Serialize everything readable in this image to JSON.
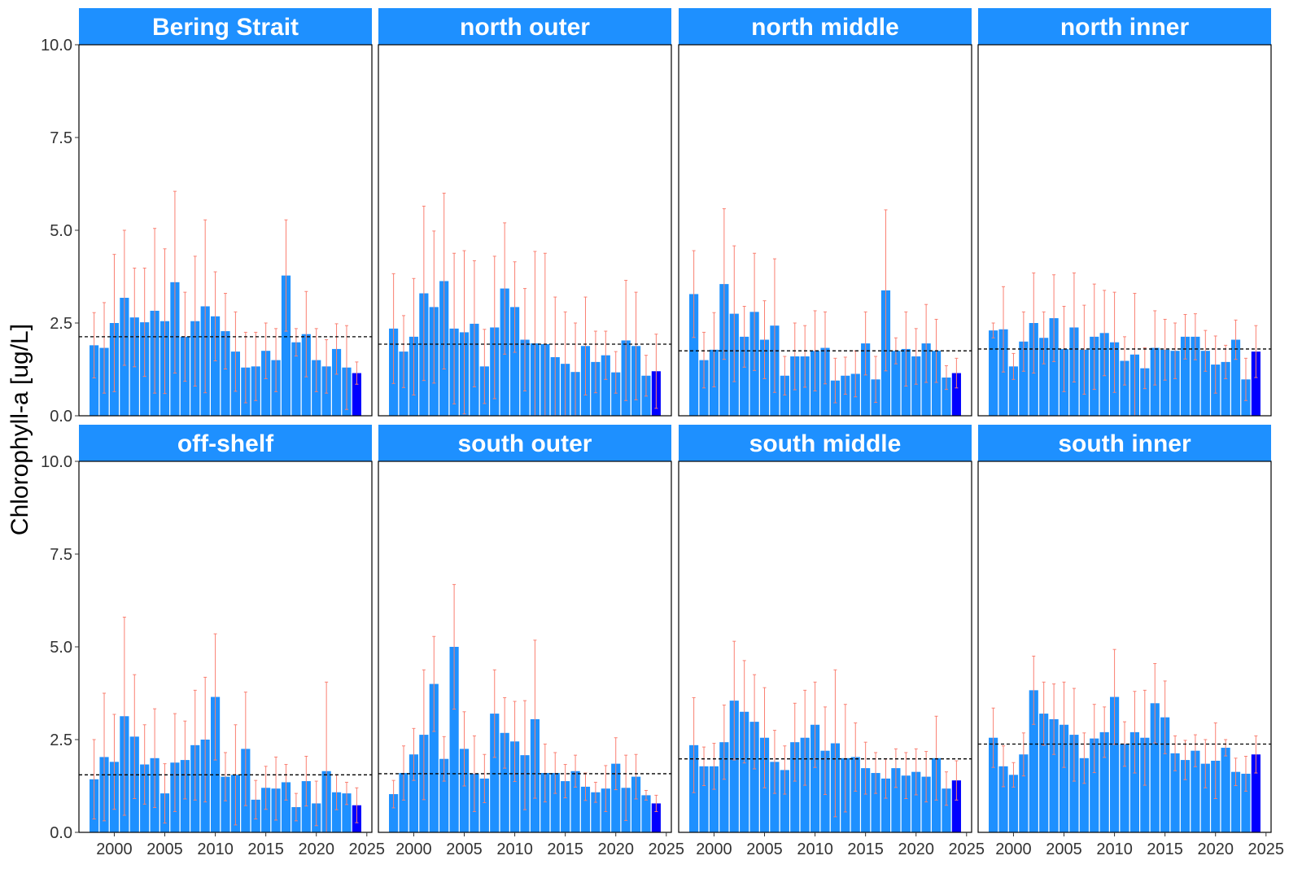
{
  "chart_data": {
    "type": "bar",
    "ylabel": "Chlorophyll-a [ug/L]",
    "xlabel": "",
    "ylim": [
      0,
      10
    ],
    "xlim": [
      1996.5,
      2025.5
    ],
    "y_ticks": [
      "0.0",
      "2.5",
      "5.0",
      "7.5",
      "10.0"
    ],
    "y_tick_values": [
      0,
      2.5,
      5,
      7.5,
      10
    ],
    "x_ticks": [
      "2000",
      "2005",
      "2010",
      "2015",
      "2020",
      "2025"
    ],
    "x_tick_values": [
      2000,
      2005,
      2010,
      2015,
      2020,
      2025
    ],
    "years": [
      1998,
      1999,
      2000,
      2001,
      2002,
      2003,
      2004,
      2005,
      2006,
      2007,
      2008,
      2009,
      2010,
      2011,
      2012,
      2013,
      2014,
      2015,
      2016,
      2017,
      2018,
      2019,
      2020,
      2021,
      2022,
      2023,
      2024
    ],
    "grid": false,
    "colors": {
      "bar": "#1E90FF",
      "highlight_bar": "#0000FF",
      "error_bar": "#FA8072",
      "mean_line": "#000000",
      "strip": "#1E90FF"
    },
    "highlight_year": 2024,
    "panels": [
      {
        "name": "Bering Strait",
        "mean": 2.13,
        "values": [
          1.9,
          1.83,
          2.5,
          3.18,
          2.65,
          2.52,
          2.83,
          2.55,
          3.6,
          2.13,
          2.55,
          2.95,
          2.68,
          2.28,
          1.73,
          1.3,
          1.33,
          1.75,
          1.5,
          3.78,
          1.98,
          2.2,
          1.5,
          1.33,
          1.8,
          1.3,
          1.15
        ],
        "upper": [
          2.78,
          3.05,
          4.35,
          5.0,
          3.98,
          3.98,
          5.05,
          4.5,
          6.05,
          3.33,
          4.3,
          5.28,
          3.88,
          3.3,
          2.8,
          2.25,
          2.25,
          2.5,
          2.35,
          5.28,
          2.35,
          3.35,
          2.35,
          2.05,
          2.48,
          2.43,
          1.45
        ]
      },
      {
        "name": "north outer",
        "mean": 1.93,
        "values": [
          2.35,
          1.73,
          2.13,
          3.3,
          2.93,
          3.63,
          2.35,
          2.25,
          2.48,
          1.33,
          2.38,
          3.43,
          2.93,
          2.05,
          1.95,
          1.93,
          1.58,
          1.4,
          1.18,
          1.88,
          1.45,
          1.63,
          1.17,
          2.03,
          1.88,
          1.08,
          1.2
        ],
        "upper": [
          3.83,
          2.7,
          3.7,
          5.65,
          4.98,
          6.0,
          4.38,
          4.45,
          4.18,
          2.33,
          4.3,
          5.2,
          4.15,
          3.43,
          4.43,
          4.38,
          3.2,
          2.8,
          2.5,
          3.2,
          2.28,
          2.28,
          1.73,
          3.65,
          3.33,
          1.63,
          2.2
        ]
      },
      {
        "name": "north middle",
        "mean": 1.75,
        "values": [
          3.28,
          1.5,
          1.78,
          3.55,
          2.75,
          2.13,
          2.8,
          2.05,
          2.43,
          1.08,
          1.6,
          1.6,
          1.75,
          1.83,
          0.95,
          1.08,
          1.13,
          1.95,
          0.98,
          3.38,
          1.75,
          1.8,
          1.6,
          1.95,
          1.75,
          1.03,
          1.15
        ],
        "upper": [
          4.45,
          2.25,
          2.78,
          5.58,
          4.58,
          2.95,
          4.38,
          3.1,
          4.23,
          1.6,
          2.5,
          2.43,
          2.83,
          2.8,
          1.55,
          1.58,
          1.75,
          2.8,
          1.6,
          5.55,
          2.1,
          2.8,
          2.35,
          3.0,
          2.6,
          1.35,
          1.55
        ]
      },
      {
        "name": "north inner",
        "mean": 1.8,
        "values": [
          2.3,
          2.33,
          1.33,
          2.0,
          2.5,
          2.1,
          2.63,
          1.8,
          2.38,
          1.78,
          2.13,
          2.23,
          1.98,
          1.48,
          1.65,
          1.28,
          1.83,
          1.78,
          1.75,
          2.13,
          2.13,
          1.75,
          1.38,
          1.45,
          2.05,
          0.98,
          1.73
        ],
        "upper": [
          2.5,
          3.48,
          1.68,
          2.8,
          3.85,
          2.8,
          3.8,
          2.95,
          3.85,
          2.98,
          3.55,
          3.38,
          3.33,
          2.13,
          3.3,
          1.83,
          2.83,
          2.6,
          2.5,
          2.73,
          2.75,
          2.3,
          2.15,
          1.9,
          2.58,
          1.55,
          2.43
        ]
      },
      {
        "name": "off-shelf",
        "mean": 1.55,
        "values": [
          1.43,
          2.03,
          1.9,
          3.13,
          2.58,
          1.83,
          2.0,
          1.05,
          1.88,
          1.95,
          2.35,
          2.5,
          3.65,
          1.5,
          1.55,
          2.25,
          0.88,
          1.2,
          1.18,
          1.35,
          0.68,
          1.38,
          0.78,
          1.65,
          1.08,
          1.05,
          0.73
        ],
        "upper": [
          2.5,
          3.75,
          3.18,
          5.8,
          4.25,
          2.9,
          3.33,
          1.85,
          3.2,
          3.0,
          3.83,
          4.18,
          5.35,
          2.15,
          2.9,
          3.78,
          1.4,
          1.78,
          2.03,
          1.83,
          1.05,
          2.05,
          1.38,
          4.05,
          1.55,
          1.35,
          1.2
        ]
      },
      {
        "name": "south outer",
        "mean": 1.58,
        "values": [
          1.03,
          1.6,
          2.1,
          2.63,
          4.0,
          1.98,
          5.0,
          2.25,
          1.58,
          1.45,
          3.2,
          2.68,
          2.45,
          2.08,
          3.05,
          1.6,
          1.6,
          1.38,
          1.65,
          1.23,
          1.08,
          1.18,
          1.85,
          1.2,
          1.5,
          1.0,
          0.78
        ],
        "upper": [
          1.4,
          2.33,
          2.8,
          4.38,
          5.28,
          2.58,
          6.68,
          3.25,
          2.6,
          2.1,
          4.38,
          3.63,
          3.53,
          3.55,
          5.18,
          2.38,
          2.15,
          1.83,
          2.08,
          1.6,
          1.35,
          1.8,
          2.55,
          2.08,
          2.1,
          1.13,
          1.0
        ]
      },
      {
        "name": "south middle",
        "mean": 1.98,
        "values": [
          2.35,
          1.78,
          1.78,
          2.43,
          3.55,
          3.25,
          2.98,
          2.55,
          1.9,
          1.68,
          2.43,
          2.55,
          2.9,
          2.2,
          2.4,
          2.0,
          2.03,
          1.73,
          1.6,
          1.45,
          1.73,
          1.53,
          1.63,
          1.5,
          2.0,
          1.18,
          1.4
        ],
        "upper": [
          3.63,
          2.3,
          2.4,
          3.43,
          5.15,
          4.63,
          4.25,
          3.9,
          2.75,
          2.33,
          3.48,
          3.83,
          4.05,
          3.38,
          4.38,
          3.45,
          2.95,
          2.43,
          2.15,
          1.98,
          2.25,
          2.15,
          2.25,
          2.18,
          3.13,
          1.63,
          1.93
        ]
      },
      {
        "name": "south inner",
        "mean": 2.38,
        "values": [
          2.55,
          1.78,
          1.55,
          2.1,
          3.83,
          3.2,
          3.05,
          2.9,
          2.63,
          2.0,
          2.53,
          2.7,
          3.65,
          2.38,
          2.7,
          2.55,
          3.48,
          3.1,
          2.13,
          1.95,
          2.2,
          1.85,
          1.93,
          2.28,
          1.63,
          1.58,
          2.1
        ],
        "upper": [
          3.35,
          2.33,
          1.88,
          2.68,
          4.75,
          4.05,
          4.0,
          4.05,
          3.88,
          2.68,
          3.45,
          3.38,
          4.93,
          2.98,
          3.8,
          3.83,
          4.55,
          4.08,
          2.6,
          2.48,
          2.63,
          2.5,
          2.95,
          2.5,
          2.0,
          2.05,
          2.6
        ]
      }
    ]
  }
}
